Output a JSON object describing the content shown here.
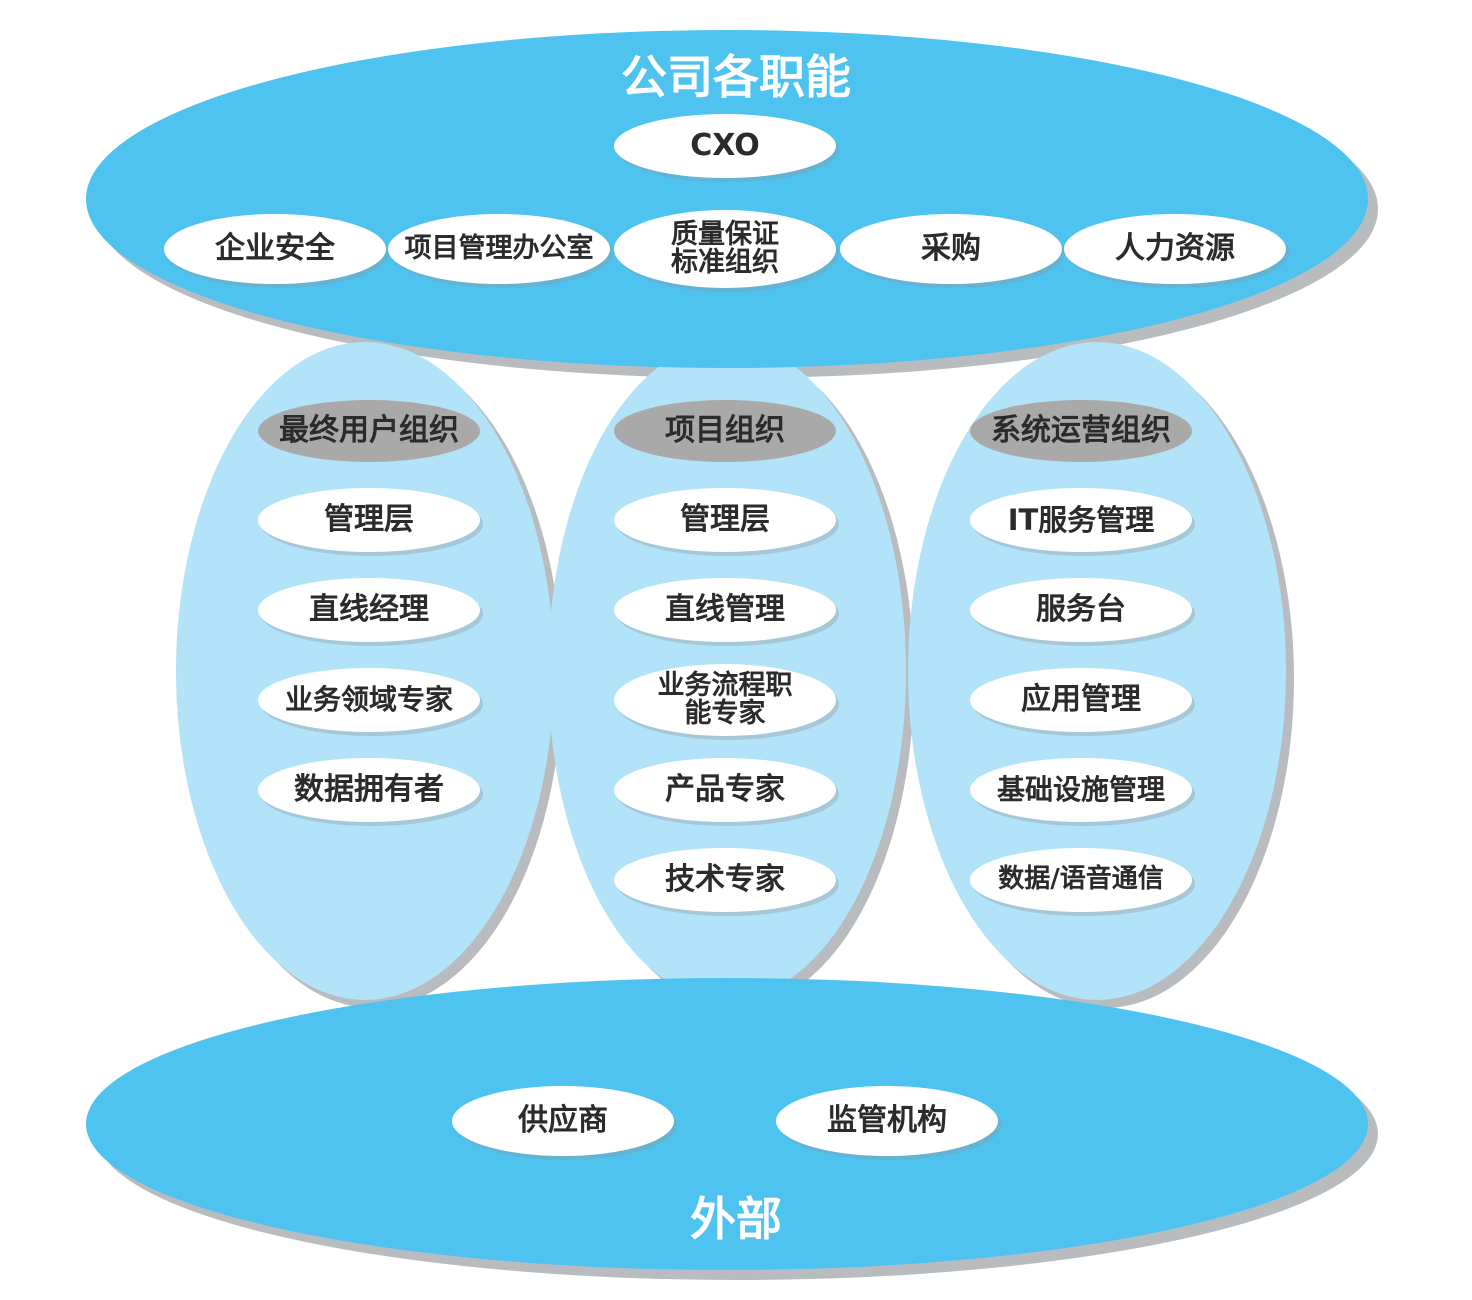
{
  "diagram": {
    "top_group": {
      "title": "公司各职能",
      "cxo": "CXO",
      "functions": [
        "企业安全",
        "项目管理办公室",
        "质量保证\n标准组织",
        "采购",
        "人力资源"
      ]
    },
    "columns": [
      {
        "header": "最终用户组织",
        "items": [
          "管理层",
          "直线经理",
          "业务领域专家",
          "数据拥有者"
        ]
      },
      {
        "header": "项目组织",
        "items": [
          "管理层",
          "直线管理",
          "业务流程职\n能专家",
          "产品专家",
          "技术专家"
        ]
      },
      {
        "header": "系统运营组织",
        "items": [
          "IT服务管理",
          "服务台",
          "应用管理",
          "基础设施管理",
          "数据/语音通信"
        ]
      }
    ],
    "bottom_group": {
      "title": "外部",
      "items": [
        "供应商",
        "监管机构"
      ]
    }
  },
  "colors": {
    "outer_ellipse": "#4ec3ef",
    "column_ellipse": "#b3e3f8",
    "item_pill": "#ffffff",
    "header_pill": "#a9a9a9",
    "shadow": "#b9bcbf",
    "text": "#2b2b2b"
  }
}
